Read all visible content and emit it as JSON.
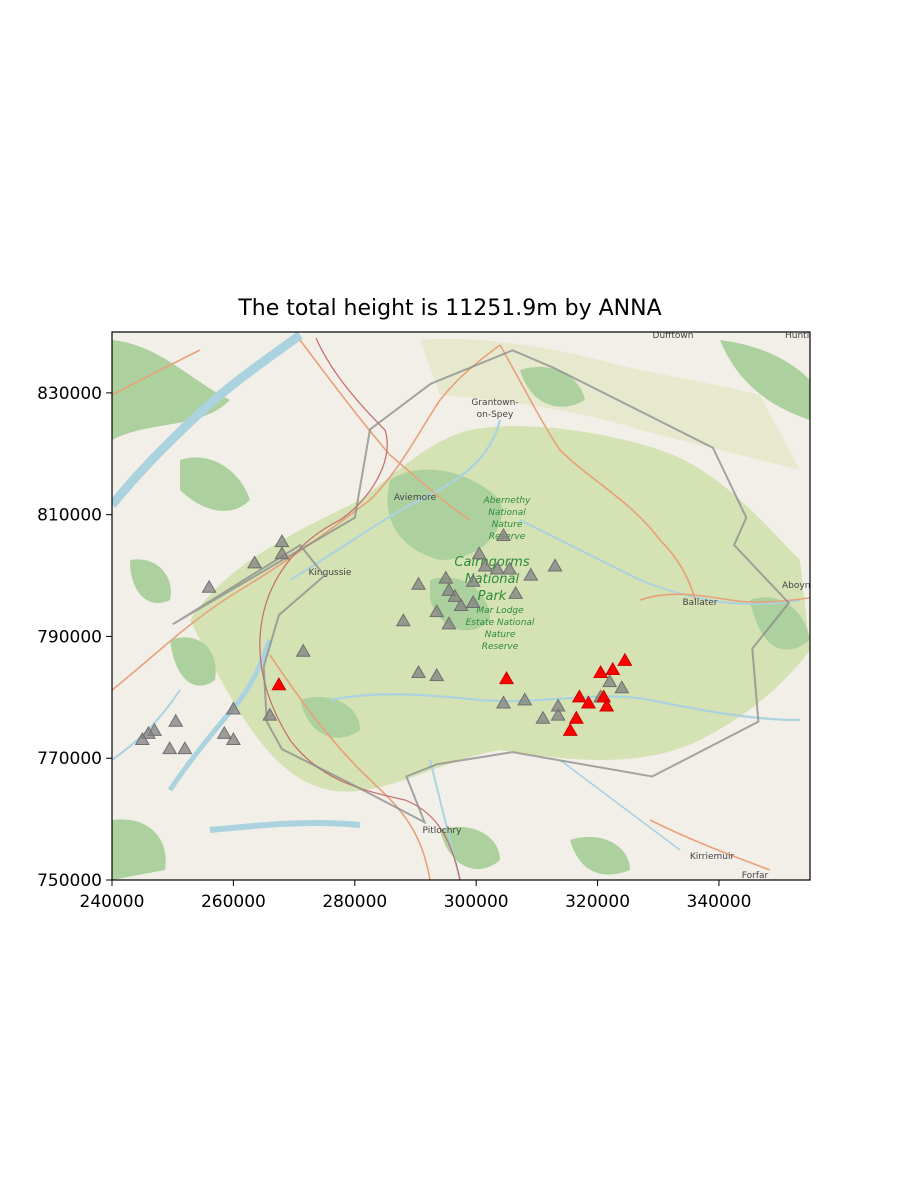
{
  "title": "The total height is 11251.9m by ANNA",
  "chart_data": {
    "type": "scatter",
    "xlim": [
      240000,
      355000
    ],
    "ylim": [
      750000,
      840000
    ],
    "x_ticks": [
      240000,
      260000,
      280000,
      300000,
      320000,
      340000
    ],
    "y_ticks": [
      750000,
      770000,
      790000,
      810000,
      830000
    ],
    "x_tick_labels": [
      "240000",
      "260000",
      "280000",
      "300000",
      "320000",
      "340000"
    ],
    "y_tick_labels": [
      "750000",
      "770000",
      "790000",
      "810000",
      "830000"
    ],
    "grid": false,
    "basemap": "OpenStreetMap",
    "boundary": [
      [
        250000,
        792000
      ],
      [
        280000,
        809500
      ],
      [
        282500,
        824000
      ],
      [
        292500,
        831500
      ],
      [
        306000,
        837000
      ],
      [
        313000,
        834000
      ],
      [
        339000,
        821000
      ],
      [
        344500,
        809500
      ],
      [
        342500,
        805000
      ],
      [
        351500,
        795500
      ],
      [
        345500,
        788000
      ],
      [
        346500,
        776000
      ],
      [
        329000,
        767000
      ],
      [
        306000,
        771000
      ],
      [
        293500,
        769000
      ],
      [
        288500,
        767000
      ],
      [
        291500,
        759500
      ],
      [
        279000,
        766000
      ],
      [
        268000,
        771500
      ],
      [
        265500,
        776000
      ],
      [
        265000,
        785000
      ],
      [
        267500,
        793500
      ],
      [
        275000,
        800000
      ],
      [
        271000,
        805000
      ],
      [
        250000,
        792000
      ]
    ],
    "series": [
      {
        "color": "#808080",
        "marker": "triangle",
        "points": [
          [
            256000,
            798000
          ],
          [
            263500,
            802000
          ],
          [
            268000,
            803500
          ],
          [
            268000,
            805500
          ],
          [
            271500,
            787500
          ],
          [
            266000,
            777000
          ],
          [
            260000,
            778000
          ],
          [
            258500,
            774000
          ],
          [
            260000,
            773000
          ],
          [
            250500,
            776000
          ],
          [
            247000,
            774500
          ],
          [
            246000,
            774000
          ],
          [
            245000,
            773000
          ],
          [
            249500,
            771500
          ],
          [
            252000,
            771500
          ],
          [
            288000,
            792500
          ],
          [
            290500,
            798500
          ],
          [
            293500,
            794000
          ],
          [
            295000,
            799500
          ],
          [
            295500,
            797500
          ],
          [
            296500,
            796500
          ],
          [
            297500,
            795000
          ],
          [
            299500,
            795500
          ],
          [
            295500,
            792000
          ],
          [
            299500,
            799000
          ],
          [
            300500,
            803500
          ],
          [
            301500,
            801500
          ],
          [
            303500,
            801000
          ],
          [
            304500,
            806500
          ],
          [
            305500,
            801000
          ],
          [
            306500,
            797000
          ],
          [
            309000,
            800000
          ],
          [
            313000,
            801500
          ],
          [
            290500,
            784000
          ],
          [
            293500,
            783500
          ],
          [
            304500,
            779000
          ],
          [
            308000,
            779500
          ],
          [
            311000,
            776500
          ],
          [
            313500,
            777000
          ],
          [
            313500,
            778500
          ],
          [
            322000,
            782500
          ],
          [
            324000,
            781500
          ],
          [
            320500,
            780000
          ]
        ]
      },
      {
        "color": "#ff0000",
        "marker": "triangle",
        "points": [
          [
            267500,
            782000
          ],
          [
            305000,
            783000
          ],
          [
            317000,
            780000
          ],
          [
            318500,
            779000
          ],
          [
            315500,
            774500
          ],
          [
            316500,
            776500
          ],
          [
            321000,
            780000
          ],
          [
            321500,
            778500
          ],
          [
            320500,
            784000
          ],
          [
            322500,
            784500
          ],
          [
            324500,
            786000
          ]
        ]
      }
    ]
  },
  "map_labels": {
    "grantown": "Grantown-on-Spey",
    "aviemore": "Aviemore",
    "kingussie": "Kingussie",
    "ballater": "Ballater",
    "pitlochry": "Pitlochry",
    "kirriemuir": "Kirriemuir",
    "forfar": "Forfar",
    "aboyne": "Aboyn",
    "dufftown": "Dufftown",
    "huntly": "Huntl",
    "abernethy": [
      "Abernethy",
      "National",
      "Nature",
      "Reserve"
    ],
    "park": [
      "Cairngorms",
      "National",
      "Park"
    ],
    "mar_lodge": [
      "Mar Lodge",
      "Estate National",
      "Nature",
      "Reserve"
    ]
  },
  "colors": {
    "land": "#f2efe9",
    "park_fill": "#d3e0b0",
    "wood": "#add19e",
    "water": "#aad3df",
    "road": "#e8a17a",
    "boundary": "#8a8a8a"
  }
}
